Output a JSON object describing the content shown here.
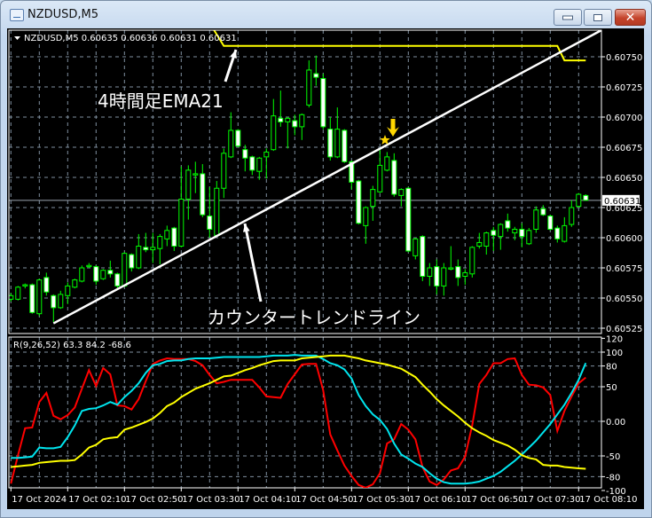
{
  "window": {
    "title": "NZDUSD,M5",
    "icon": "chart-window-icon",
    "buttons": {
      "minimize": "minimize-icon",
      "maximize": "maximize-icon",
      "close": "close-icon",
      "close_glyph": "✕"
    }
  },
  "chart_header": {
    "symbol": "NZDUSD,M5",
    "ohlc": "0.60635 0.60636 0.60631 0.60631"
  },
  "annotations": {
    "ema_label": "4時間足EMA21",
    "trendline_label": "カウンタートレンドライン"
  },
  "colors": {
    "background": "#000000",
    "candle": "#00ff00",
    "bear_body": "#ffffff",
    "ema": "#ffff00",
    "trendline": "#ffffff",
    "grid": "#8090a0",
    "rci_short": "#ff0000",
    "rci_mid": "#00e5ee",
    "rci_long": "#ffff00",
    "signal": "#ffd700"
  },
  "chart_data": [
    {
      "type": "candlestick",
      "symbol": "NZDUSD",
      "timeframe": "M5",
      "ylim": [
        0.60525,
        0.6077
      ],
      "y_ticks": [
        "0.60750",
        "0.60725",
        "0.60700",
        "0.60675",
        "0.60650",
        "0.60625",
        "0.60600",
        "0.60575",
        "0.60550",
        "0.60525"
      ],
      "current_price": "0.60631",
      "x_ticks": [
        "17 Oct 2024",
        "17 Oct 02:10",
        "17 Oct 02:50",
        "17 Oct 03:30",
        "17 Oct 04:10",
        "17 Oct 04:50",
        "17 Oct 05:30",
        "17 Oct 06:10",
        "17 Oct 06:50",
        "17 Oct 07:30",
        "17 Oct 08:10"
      ],
      "grid": true,
      "candles_ohlc": [
        [
          0.60549,
          0.60554,
          0.60547,
          0.60552
        ],
        [
          0.60549,
          0.6056,
          0.60548,
          0.60559
        ],
        [
          0.6056,
          0.60562,
          0.60558,
          0.60561
        ],
        [
          0.60561,
          0.60562,
          0.60537,
          0.60538
        ],
        [
          0.60537,
          0.60566,
          0.60535,
          0.60565
        ],
        [
          0.60567,
          0.60571,
          0.60552,
          0.60555
        ],
        [
          0.60552,
          0.60553,
          0.6053,
          0.60542
        ],
        [
          0.60542,
          0.60556,
          0.60541,
          0.60553
        ],
        [
          0.60552,
          0.60563,
          0.60545,
          0.6056
        ],
        [
          0.60559,
          0.60566,
          0.60558,
          0.60565
        ],
        [
          0.60564,
          0.60577,
          0.60563,
          0.60575
        ],
        [
          0.60576,
          0.60579,
          0.60575,
          0.60577
        ],
        [
          0.60576,
          0.60577,
          0.60561,
          0.60564
        ],
        [
          0.60566,
          0.60574,
          0.60565,
          0.60573
        ],
        [
          0.60573,
          0.60581,
          0.60567,
          0.6057
        ],
        [
          0.6057,
          0.60571,
          0.60557,
          0.6056
        ],
        [
          0.6056,
          0.60588,
          0.60559,
          0.60587
        ],
        [
          0.60586,
          0.60587,
          0.60572,
          0.60575
        ],
        [
          0.60575,
          0.60603,
          0.60574,
          0.60593
        ],
        [
          0.60592,
          0.60604,
          0.60588,
          0.6059
        ],
        [
          0.6059,
          0.60604,
          0.60579,
          0.60592
        ],
        [
          0.60591,
          0.60603,
          0.60578,
          0.60601
        ],
        [
          0.60599,
          0.6061,
          0.60593,
          0.60606
        ],
        [
          0.60608,
          0.60609,
          0.60589,
          0.60593
        ],
        [
          0.60593,
          0.60659,
          0.60592,
          0.60632
        ],
        [
          0.60632,
          0.6066,
          0.60615,
          0.60656
        ],
        [
          0.60652,
          0.60663,
          0.60637,
          0.60653
        ],
        [
          0.60653,
          0.60661,
          0.60617,
          0.60619
        ],
        [
          0.60618,
          0.60642,
          0.606,
          0.60607
        ],
        [
          0.60602,
          0.60647,
          0.60601,
          0.60641
        ],
        [
          0.60641,
          0.60674,
          0.60633,
          0.6067
        ],
        [
          0.60667,
          0.60704,
          0.60666,
          0.60689
        ],
        [
          0.60689,
          0.6069,
          0.60675,
          0.60676
        ],
        [
          0.60673,
          0.60677,
          0.60655,
          0.60666
        ],
        [
          0.60667,
          0.60668,
          0.60652,
          0.60656
        ],
        [
          0.60655,
          0.60667,
          0.60648,
          0.60666
        ],
        [
          0.60667,
          0.60674,
          0.60649,
          0.60671
        ],
        [
          0.60673,
          0.60715,
          0.60672,
          0.60701
        ],
        [
          0.60699,
          0.60722,
          0.60692,
          0.60696
        ],
        [
          0.60696,
          0.607,
          0.60674,
          0.60699
        ],
        [
          0.60697,
          0.60702,
          0.60685,
          0.60692
        ],
        [
          0.60692,
          0.60703,
          0.60681,
          0.60702
        ],
        [
          0.6071,
          0.60747,
          0.60708,
          0.60739
        ],
        [
          0.60736,
          0.60751,
          0.60726,
          0.60733
        ],
        [
          0.60732,
          0.60736,
          0.6069,
          0.60692
        ],
        [
          0.6069,
          0.607,
          0.60664,
          0.60667
        ],
        [
          0.60667,
          0.60708,
          0.60666,
          0.6069
        ],
        [
          0.60689,
          0.6069,
          0.60662,
          0.60663
        ],
        [
          0.60663,
          0.60664,
          0.6064,
          0.60646
        ],
        [
          0.60647,
          0.60648,
          0.60611,
          0.60612
        ],
        [
          0.6061,
          0.60626,
          0.60595,
          0.60625
        ],
        [
          0.60626,
          0.60643,
          0.60614,
          0.6064
        ],
        [
          0.60638,
          0.60674,
          0.60637,
          0.6066
        ],
        [
          0.60656,
          0.60671,
          0.60655,
          0.60667
        ],
        [
          0.60664,
          0.6067,
          0.60634,
          0.60636
        ],
        [
          0.60635,
          0.60641,
          0.60626,
          0.6064
        ],
        [
          0.60641,
          0.60642,
          0.60588,
          0.60589
        ],
        [
          0.60585,
          0.606,
          0.60582,
          0.60599
        ],
        [
          0.60601,
          0.60602,
          0.60564,
          0.60568
        ],
        [
          0.60568,
          0.60579,
          0.6056,
          0.60575
        ],
        [
          0.60576,
          0.60582,
          0.60553,
          0.6056
        ],
        [
          0.6056,
          0.60579,
          0.60552,
          0.60575
        ],
        [
          0.60574,
          0.60593,
          0.60573,
          0.60575
        ],
        [
          0.60576,
          0.60582,
          0.6056,
          0.60567
        ],
        [
          0.60568,
          0.60574,
          0.60561,
          0.60571
        ],
        [
          0.6057,
          0.60593,
          0.60567,
          0.60592
        ],
        [
          0.60593,
          0.60604,
          0.60591,
          0.60596
        ],
        [
          0.60593,
          0.60605,
          0.60586,
          0.60604
        ],
        [
          0.60606,
          0.60609,
          0.60589,
          0.60602
        ],
        [
          0.60601,
          0.60612,
          0.6059,
          0.60611
        ],
        [
          0.60614,
          0.6062,
          0.60605,
          0.60608
        ],
        [
          0.60604,
          0.60609,
          0.60598,
          0.60607
        ],
        [
          0.60607,
          0.60612,
          0.60592,
          0.60601
        ],
        [
          0.60595,
          0.60608,
          0.60594,
          0.60606
        ],
        [
          0.60607,
          0.60626,
          0.60604,
          0.60623
        ],
        [
          0.60624,
          0.60627,
          0.60618,
          0.60619
        ],
        [
          0.60618,
          0.60619,
          0.60606,
          0.60607
        ],
        [
          0.60608,
          0.6061,
          0.60596,
          0.60599
        ],
        [
          0.60597,
          0.60617,
          0.60596,
          0.6061
        ],
        [
          0.60611,
          0.60631,
          0.60609,
          0.60625
        ],
        [
          0.60626,
          0.60637,
          0.60625,
          0.60636
        ],
        [
          0.60635,
          0.60636,
          0.60631,
          0.60631
        ]
      ],
      "ema21_4h": {
        "flat_level": 0.60759,
        "after_step": 0.60747
      },
      "trendline": {
        "start_price": 0.60529,
        "end_price": 0.60772
      },
      "signal": {
        "marker": "star-icon",
        "arrow": "arrow-down-icon",
        "price": 0.60681
      }
    },
    {
      "type": "line",
      "label": "R(9,26,52) 63.3 84.2 -68.6",
      "ylim": [
        -110,
        125
      ],
      "y_ticks": [
        "120",
        "100",
        "80",
        "50",
        "0.00",
        "-50",
        "-80",
        "-100"
      ],
      "grid_levels": [
        100,
        80,
        50,
        0,
        -50,
        -80
      ],
      "series": [
        {
          "color": "#ff0000",
          "values": [
            -90,
            -49,
            -10,
            -9,
            28,
            41,
            8,
            3,
            9,
            20,
            47,
            74,
            51,
            77,
            68,
            23,
            22,
            17,
            32,
            58,
            83,
            88,
            91,
            90,
            90,
            90,
            87,
            81,
            67,
            55,
            57,
            60,
            60,
            60,
            60,
            49,
            36,
            35,
            34,
            54,
            68,
            82,
            83,
            83,
            45,
            -19,
            -42,
            -64,
            -79,
            -92,
            -96,
            -91,
            -75,
            -32,
            -26,
            -4,
            -12,
            -26,
            -66,
            -87,
            -92,
            -84,
            -71,
            -68,
            -51,
            -6,
            54,
            67,
            84,
            84,
            90,
            91,
            67,
            53,
            52,
            49,
            38,
            -14,
            15,
            36,
            55,
            63.3
          ]
        },
        {
          "color": "#00e5ee",
          "values": [
            -53,
            -53,
            -52,
            -51,
            -38,
            -39,
            -39,
            -37,
            -23,
            -6,
            15,
            18,
            19,
            23,
            28,
            24,
            35,
            44,
            55,
            70,
            81,
            83,
            87,
            88,
            88,
            90,
            91,
            91,
            91,
            92,
            93,
            93,
            93,
            93,
            93,
            93,
            94,
            95,
            95,
            95,
            96,
            95,
            95,
            95,
            90,
            84,
            81,
            75,
            62,
            38,
            22,
            10,
            2,
            -11,
            -32,
            -48,
            -54,
            -61,
            -66,
            -75,
            -83,
            -88,
            -90,
            -90,
            -90,
            -89,
            -87,
            -83,
            -79,
            -73,
            -65,
            -57,
            -48,
            -38,
            -28,
            -16,
            -4,
            10,
            24,
            41,
            60,
            84.2
          ]
        },
        {
          "color": "#ffff00",
          "values": [
            -66,
            -65,
            -64,
            -63,
            -60,
            -59,
            -58,
            -57,
            -57,
            -56,
            -48,
            -38,
            -34,
            -26,
            -24,
            -23,
            -12,
            -9,
            -5,
            -1,
            4,
            12,
            22,
            27,
            35,
            41,
            47,
            51,
            55,
            60,
            65,
            66,
            70,
            74,
            77,
            81,
            84,
            87,
            88,
            88,
            88,
            91,
            92,
            93,
            94,
            95,
            95,
            95,
            93,
            91,
            88,
            86,
            84,
            82,
            79,
            76,
            70,
            64,
            53,
            43,
            32,
            23,
            15,
            7,
            -2,
            -10,
            -16,
            -21,
            -27,
            -31,
            -35,
            -41,
            -49,
            -53,
            -55,
            -63,
            -64,
            -64,
            -66,
            -67,
            -68,
            -68.6
          ]
        }
      ]
    }
  ]
}
